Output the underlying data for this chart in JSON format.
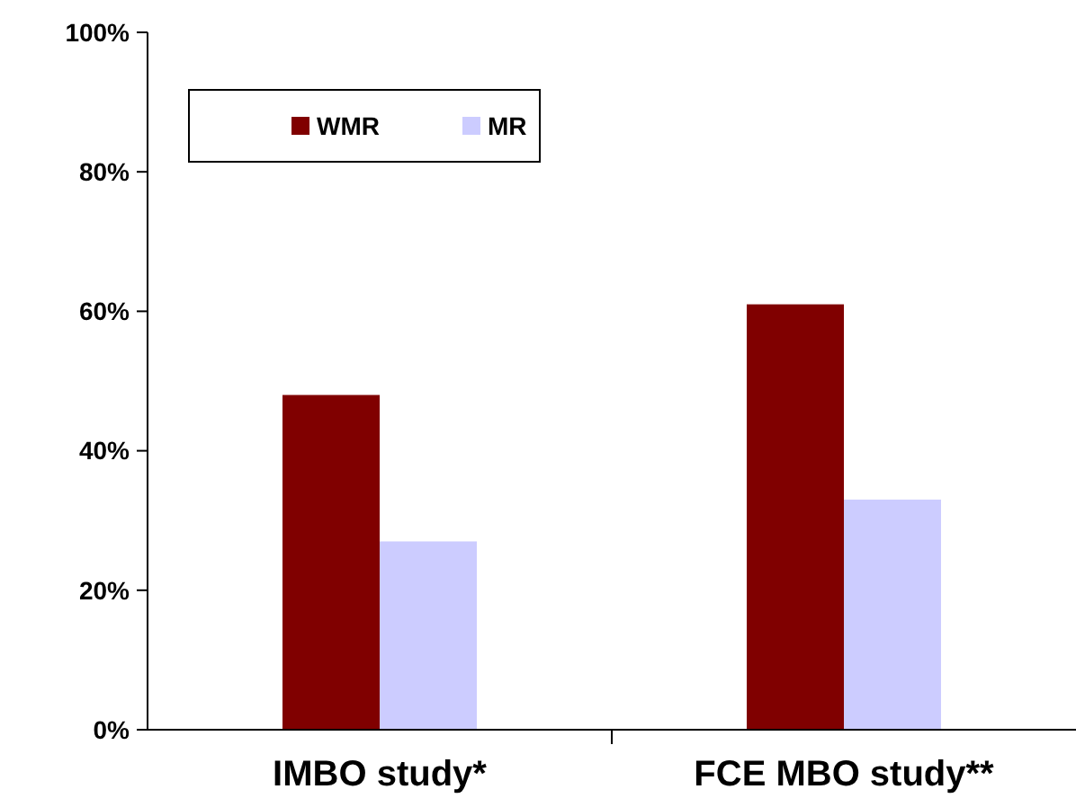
{
  "chart_data": {
    "type": "bar",
    "categories": [
      "IMBO study*",
      "FCE MBO study**"
    ],
    "series": [
      {
        "name": "WMR",
        "color": "#800000",
        "values": [
          48,
          61
        ]
      },
      {
        "name": "MR",
        "color": "#ccccff",
        "values": [
          27,
          33
        ]
      }
    ],
    "ylim": [
      0,
      100
    ],
    "yticks": [
      {
        "value": 0,
        "label": "0%"
      },
      {
        "value": 20,
        "label": "20%"
      },
      {
        "value": 40,
        "label": "40%"
      },
      {
        "value": 60,
        "label": "60%"
      },
      {
        "value": 80,
        "label": "80%"
      },
      {
        "value": 100,
        "label": "100%"
      }
    ],
    "grid": false,
    "legend": "top left"
  }
}
